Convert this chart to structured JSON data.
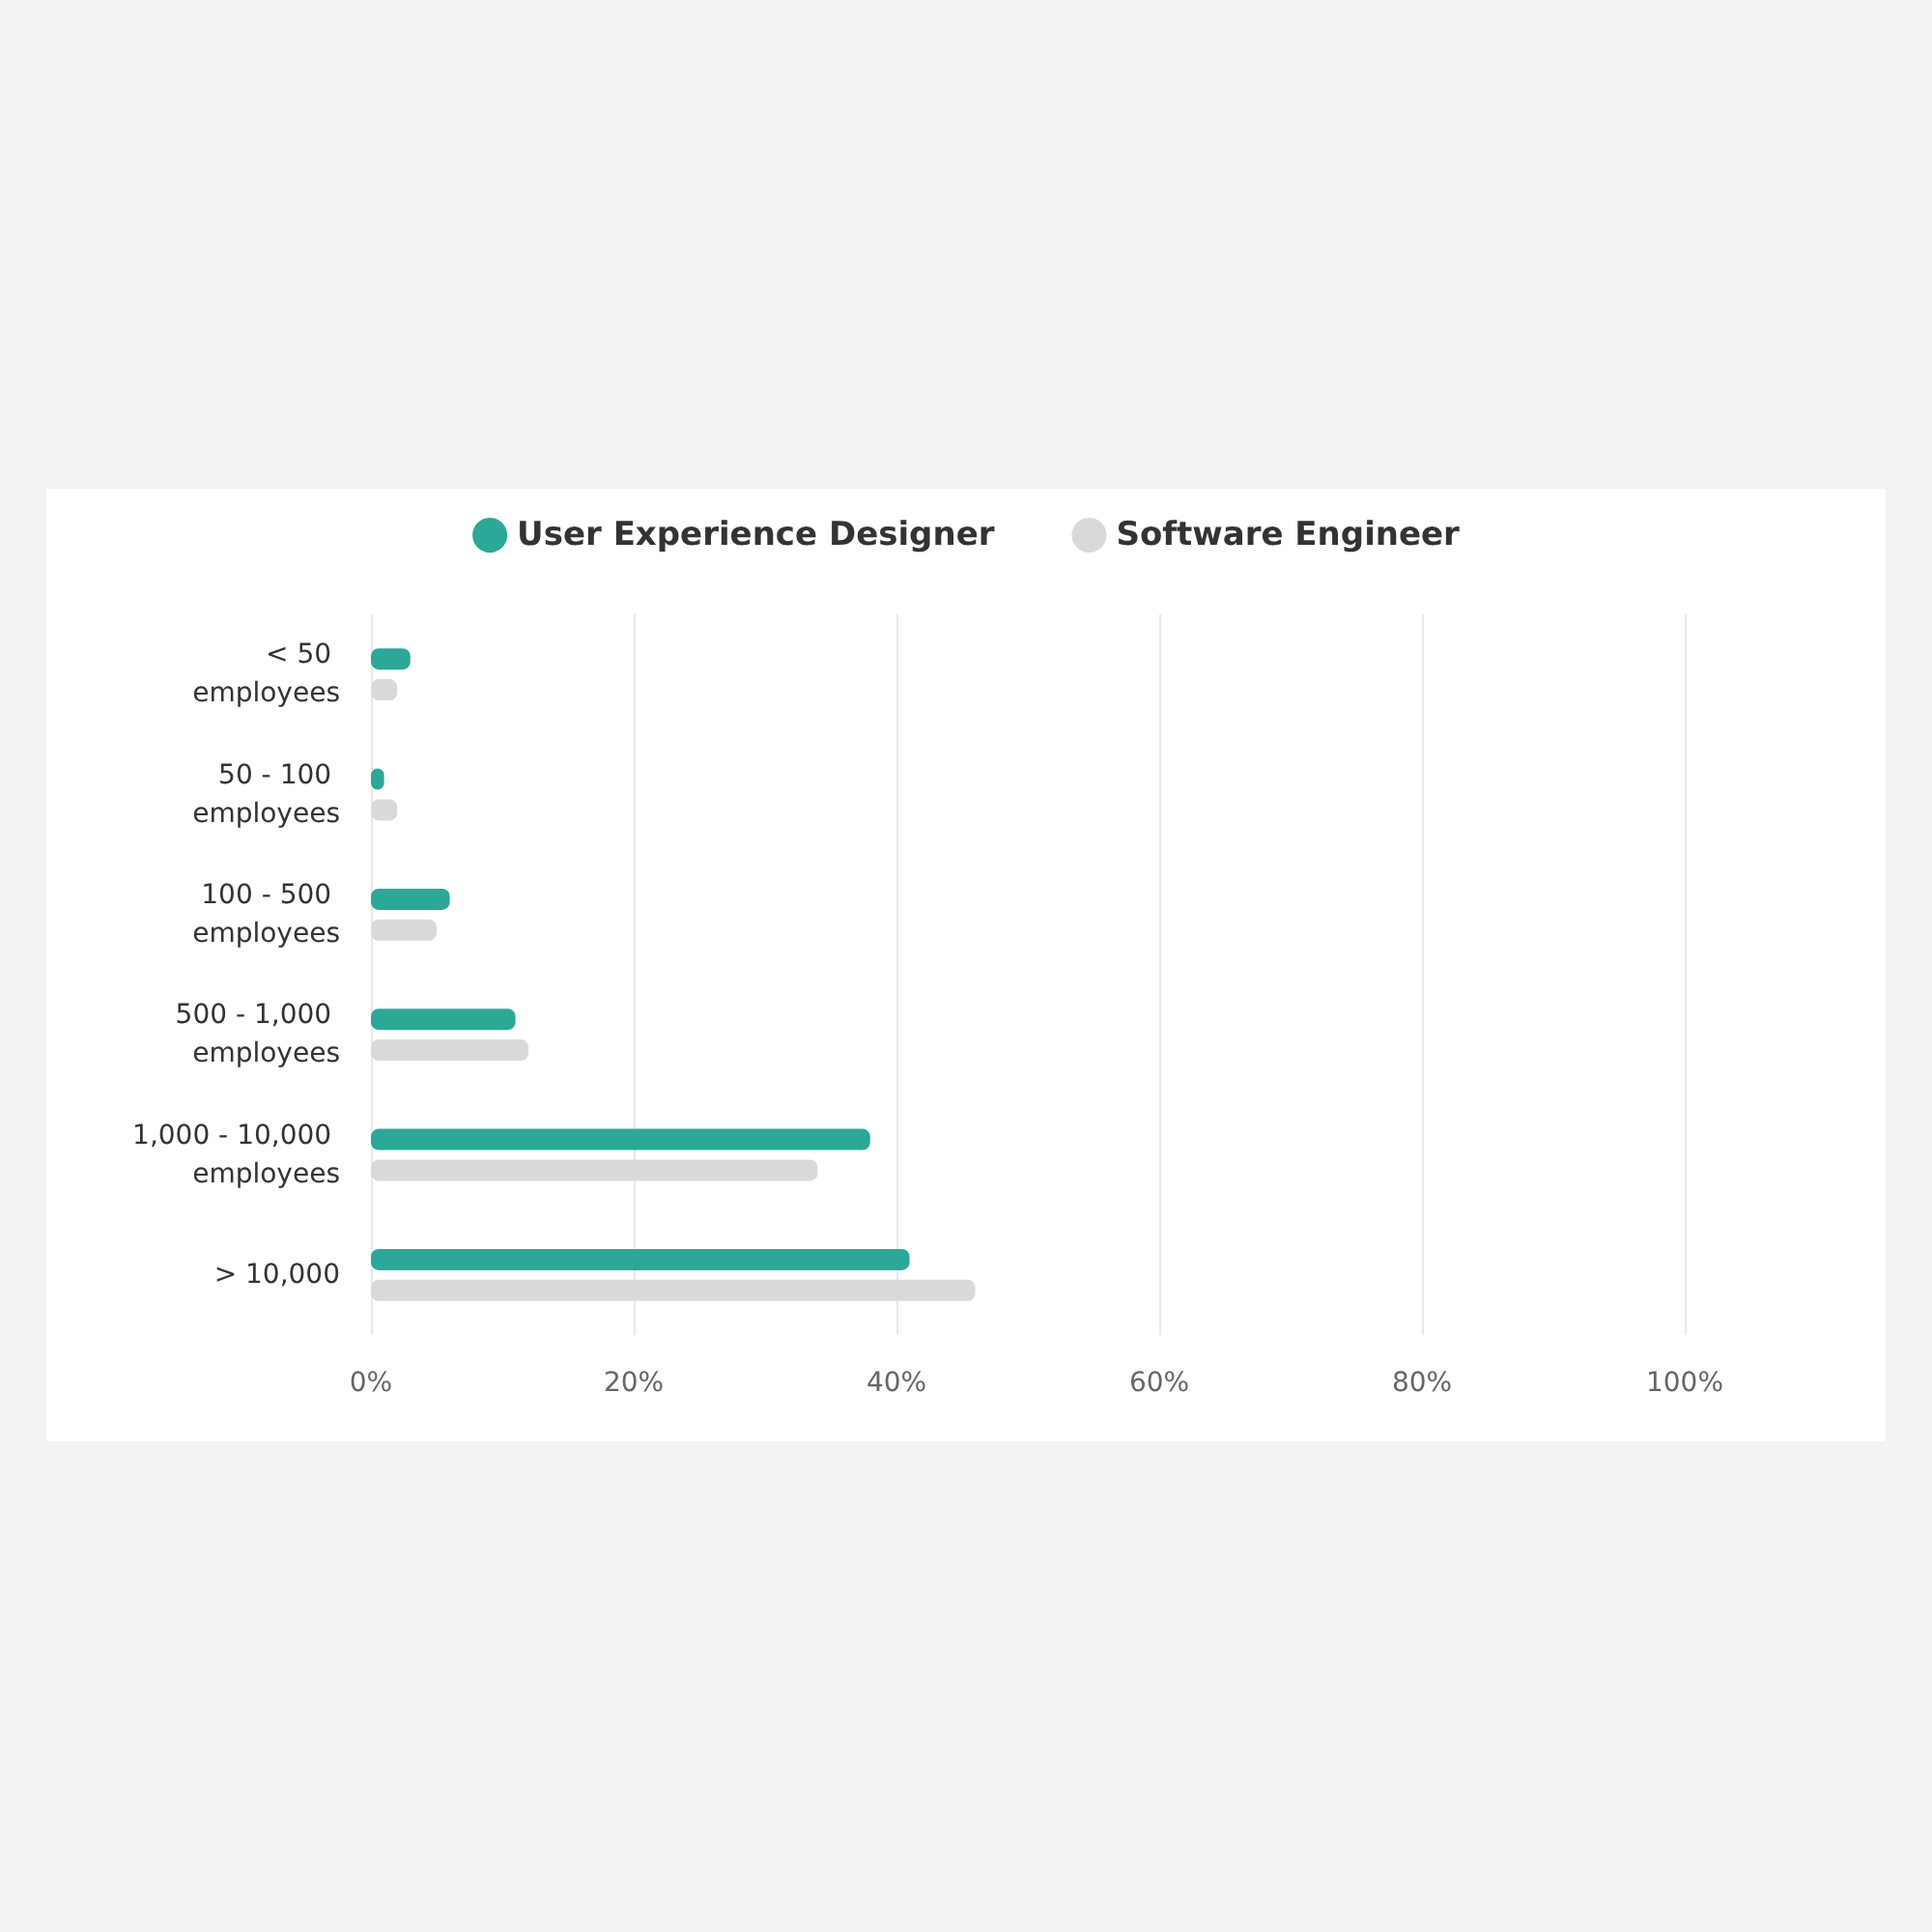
{
  "chart_data": {
    "type": "bar",
    "orientation": "horizontal",
    "categories": [
      "< 50 employees",
      "50 - 100 employees",
      "100 - 500 employees",
      "500 - 1,000 employees",
      "1,000 - 10,000 employees",
      "> 10,000"
    ],
    "series": [
      {
        "name": "User Experience Designer",
        "color": "#2ba898",
        "values": [
          3,
          1,
          6,
          11,
          38,
          41
        ]
      },
      {
        "name": "Software Engineer",
        "color": "#d9d9db",
        "values": [
          2,
          2,
          5,
          12,
          34,
          46
        ]
      }
    ],
    "xlim": [
      0,
      100
    ],
    "xticks": [
      {
        "value": 0,
        "label": "0%"
      },
      {
        "value": 20,
        "label": "20%"
      },
      {
        "value": 40,
        "label": "40%"
      },
      {
        "value": 60,
        "label": "60%"
      },
      {
        "value": 80,
        "label": "80%"
      },
      {
        "value": 100,
        "label": "100%"
      }
    ],
    "grid": "x",
    "legend": "top"
  }
}
